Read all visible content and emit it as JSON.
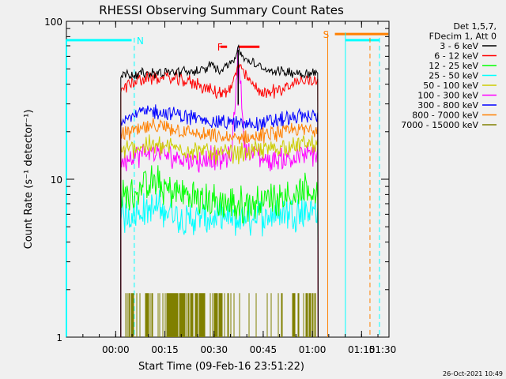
{
  "chart_data": {
    "type": "line",
    "title": "RHESSI Observing Summary Count Rates",
    "xlabel": "Start Time (09-Feb-16 23:51:22)",
    "ylabel": "Count Rate (s⁻¹ detector⁻¹)",
    "x_unit": "minutes after start time",
    "xlim": [
      -6.4,
      92
    ],
    "ylim": [
      1,
      100
    ],
    "y_scale": "log",
    "x_ticks": [
      {
        "value": 8.63,
        "label": "00:00"
      },
      {
        "value": 23.63,
        "label": "00:15"
      },
      {
        "value": 38.63,
        "label": "00:30"
      },
      {
        "value": 53.63,
        "label": "00:45"
      },
      {
        "value": 68.63,
        "label": "01:00"
      },
      {
        "value": 83.63,
        "label": "01:15"
      },
      {
        "value": 98.63,
        "label": "01:30"
      }
    ],
    "y_ticks": [
      {
        "value": 1,
        "label": "1"
      },
      {
        "value": 10,
        "label": "10"
      },
      {
        "value": 100,
        "label": "100"
      }
    ],
    "legend_header": [
      "Det 1,5,7,",
      "FDecim 1, Att 0"
    ],
    "legend_position": "right-outside",
    "data_start": 10.2,
    "data_end": 70.4,
    "series": [
      {
        "name": "3 - 6 keV",
        "color": "#000000",
        "values_x": [
          10.2,
          20,
          30,
          36,
          38,
          40,
          42,
          44.5,
          46,
          48,
          52,
          55,
          60,
          65,
          70.4
        ],
        "values_y": [
          46,
          47,
          48,
          49,
          54,
          49,
          52,
          57,
          66,
          58,
          52,
          49,
          48,
          47,
          47
        ]
      },
      {
        "name": "6 - 12 keV",
        "color": "#ff0000",
        "values_x": [
          10.2,
          15,
          20,
          25,
          30,
          35,
          38,
          40,
          44,
          46,
          48,
          52,
          55,
          60,
          65,
          70.4
        ],
        "values_y": [
          38,
          42,
          44,
          44,
          42,
          39,
          36,
          35,
          37,
          55,
          45,
          37,
          35,
          38,
          42,
          43
        ]
      },
      {
        "name": "12 - 25 keV",
        "color": "#00ff00",
        "values_x": [
          10.2,
          15,
          20,
          25,
          30,
          35,
          40,
          45,
          50,
          55,
          60,
          65,
          70.4
        ],
        "values_y": [
          7.5,
          8.5,
          9.5,
          8.5,
          8,
          7.5,
          7,
          6.8,
          7,
          7.5,
          8,
          8,
          8.5
        ]
      },
      {
        "name": "25 - 50 keV",
        "color": "#00ffff",
        "values_x": [
          10.2,
          15,
          20,
          25,
          30,
          35,
          40,
          45,
          50,
          55,
          60,
          65,
          70.4
        ],
        "values_y": [
          6,
          6.3,
          6.5,
          6.3,
          5.5,
          5.7,
          5.5,
          5.5,
          5.7,
          6,
          6.2,
          6.3,
          6.5
        ]
      },
      {
        "name": "50 - 100 keV",
        "color": "#cccc00",
        "values_x": [
          10.2,
          15,
          20,
          25,
          30,
          35,
          40,
          45,
          50,
          55,
          60,
          65,
          70.4
        ],
        "values_y": [
          15,
          16,
          16.5,
          16,
          15.5,
          15,
          14.5,
          14.5,
          15,
          15.5,
          16,
          16.5,
          17
        ]
      },
      {
        "name": "100 - 300 keV",
        "color": "#ff00ff",
        "values_x": [
          10.2,
          15,
          20,
          25,
          30,
          35,
          38,
          40,
          44,
          46,
          48,
          52,
          55,
          60,
          65,
          70.4
        ],
        "values_y": [
          13,
          14,
          15,
          14,
          13.5,
          13,
          14,
          13,
          14,
          65,
          16,
          14,
          13,
          13.5,
          14,
          14.5
        ]
      },
      {
        "name": "300 - 800 keV",
        "color": "#0000ff",
        "values_x": [
          10.2,
          15,
          20,
          25,
          30,
          35,
          40,
          45,
          50,
          55,
          60,
          65,
          70.4
        ],
        "values_y": [
          24,
          26,
          27,
          26,
          25,
          24,
          23,
          22.5,
          22.5,
          23,
          24,
          25,
          25
        ]
      },
      {
        "name": "800 - 7000 keV",
        "color": "#ff8000",
        "values_x": [
          10.2,
          15,
          20,
          25,
          30,
          35,
          40,
          45,
          50,
          55,
          60,
          65,
          70.4
        ],
        "values_y": [
          19,
          20.5,
          21.5,
          21,
          20,
          19,
          18.5,
          18,
          18.5,
          19,
          20,
          20.5,
          21
        ]
      },
      {
        "name": "7000 - 15000 keV",
        "color": "#808000",
        "values_x": [
          10.2,
          13,
          16,
          19,
          22,
          25,
          28,
          31,
          34,
          37,
          40,
          43,
          46,
          49,
          52,
          55,
          58,
          61,
          64,
          67,
          70.4
        ],
        "values_y": [
          1,
          1.9,
          1,
          1.9,
          1,
          1.9,
          1,
          1.9,
          1,
          1,
          1.9,
          1,
          1,
          1,
          1,
          1,
          1.9,
          1,
          1,
          1.9,
          1
        ]
      }
    ],
    "annotations": [
      {
        "label": "N",
        "color": "#00ffff",
        "x": 14.3,
        "y": 76
      },
      {
        "label": "F",
        "color": "#ff0000",
        "x": 42.5,
        "y": 69
      },
      {
        "label": "S",
        "color": "#ff8000",
        "x": 74.3,
        "y": 83
      }
    ],
    "intervals": [
      {
        "kind": "night",
        "color": "#00ffff",
        "x_start": -6.4,
        "x_end": 13.5,
        "y": 76
      },
      {
        "kind": "night",
        "color": "#00ffff",
        "x_start": 78.7,
        "x_end": 89.1,
        "y": 76
      },
      {
        "kind": "flare",
        "color": "#ff0000",
        "x_start": 40.6,
        "x_end": 42.6,
        "y": 69
      },
      {
        "kind": "flare",
        "color": "#ff0000",
        "x_start": 46.2,
        "x_end": 52.5,
        "y": 69
      },
      {
        "kind": "saa",
        "color": "#ff8000",
        "x_start": 75.5,
        "x_end": 91.8,
        "y": 83
      }
    ],
    "dashed_lines": [
      {
        "color": "#00ffff",
        "x": 14.3
      },
      {
        "color": "#00ffff",
        "x": 89.1
      },
      {
        "color": "#ff8000",
        "x": 86.2
      }
    ],
    "solid_lines": [
      {
        "color": "#00ffff",
        "x": 78.7
      },
      {
        "color": "#ff8000",
        "x": 73.3
      }
    ],
    "timestamp": "26-Oct-2021 10:49"
  }
}
